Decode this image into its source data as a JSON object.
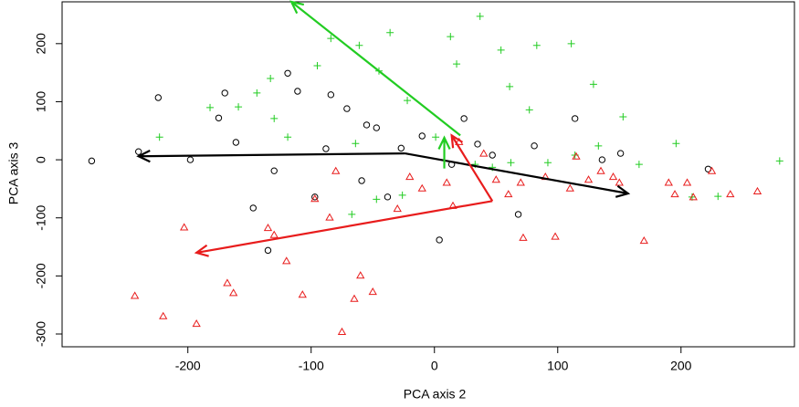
{
  "chart_data": {
    "type": "scatter",
    "x_label": "PCA axis 2",
    "y_label": "PCA axis 3",
    "xlim": [
      -302,
      292
    ],
    "ylim": [
      -322,
      272
    ],
    "xticks": [
      -200,
      -100,
      0,
      100,
      200
    ],
    "yticks": [
      -300,
      -200,
      -100,
      0,
      100,
      200
    ],
    "series": [
      {
        "color": "#000000",
        "shape": "circle",
        "x": [
          -278,
          -240,
          -224,
          -198,
          -170,
          -175,
          -161,
          -130,
          -135,
          -147,
          -119,
          -111,
          -88,
          -97,
          -84,
          -71,
          -59,
          -55,
          -47,
          -38,
          -27,
          -10,
          4,
          14,
          24,
          35,
          47,
          68,
          81,
          114,
          136,
          151,
          222
        ],
        "y": [
          -2,
          14,
          107,
          0,
          115,
          72,
          30,
          -19,
          -156,
          -83,
          149,
          118,
          19,
          -64,
          112,
          88,
          -36,
          60,
          55,
          -64,
          20,
          41,
          -138,
          -8,
          71,
          27,
          8,
          -94,
          24,
          71,
          0,
          11,
          -16
        ]
      },
      {
        "color": "#22cc22",
        "shape": "plus",
        "x": [
          -223,
          -182,
          -159,
          -133,
          -144,
          -130,
          -119,
          -95,
          -84,
          -61,
          -36,
          -45,
          -64,
          -67,
          -47,
          -26,
          -22,
          1,
          13,
          18,
          37,
          54,
          61,
          77,
          83,
          111,
          129,
          133,
          153,
          196,
          166,
          209,
          230,
          280,
          33,
          47,
          62,
          92,
          114
        ],
        "y": [
          39,
          90,
          91,
          140,
          115,
          71,
          39,
          162,
          209,
          197,
          219,
          153,
          28,
          -94,
          -68,
          -61,
          102,
          39,
          212,
          165,
          247,
          189,
          126,
          86,
          197,
          200,
          130,
          24,
          74,
          28,
          -8,
          -64,
          -63,
          -2,
          -8,
          -13,
          -5,
          -5,
          8
        ]
      },
      {
        "color": "#e81c1c",
        "shape": "triangle",
        "x": [
          -243,
          -220,
          -203,
          -193,
          -168,
          -163,
          -135,
          -130,
          -120,
          -107,
          -97,
          -85,
          -80,
          -75,
          -65,
          -60,
          -50,
          -30,
          -20,
          -10,
          10,
          15,
          20,
          40,
          50,
          60,
          70,
          72,
          90,
          98,
          110,
          115,
          125,
          135,
          145,
          150,
          170,
          190,
          195,
          205,
          210,
          225,
          240,
          262
        ],
        "y": [
          -235,
          -270,
          -117,
          -283,
          -213,
          -230,
          -118,
          -130,
          -175,
          -233,
          -68,
          -100,
          -20,
          -297,
          -240,
          -200,
          -228,
          -85,
          -30,
          -50,
          -40,
          -80,
          30,
          10,
          -35,
          -60,
          -40,
          -135,
          -30,
          -133,
          -50,
          5,
          -35,
          -20,
          -30,
          -40,
          -140,
          -40,
          -60,
          -40,
          -65,
          -20,
          -60,
          -55
        ]
      }
    ],
    "arrows": [
      {
        "color": "#000000",
        "from": [
          -24,
          11
        ],
        "to": [
          -240,
          6
        ]
      },
      {
        "color": "#000000",
        "from": [
          -24,
          11
        ],
        "to": [
          157,
          -58
        ]
      },
      {
        "color": "#e81c1c",
        "from": [
          47,
          -71
        ],
        "to": [
          -193,
          -160
        ]
      },
      {
        "color": "#e81c1c",
        "from": [
          47,
          -71
        ],
        "to": [
          14,
          42
        ]
      },
      {
        "color": "#22cc22",
        "from": [
          21,
          42
        ],
        "to": [
          -116,
          272
        ]
      },
      {
        "color": "#22cc22",
        "from": [
          8,
          -15
        ],
        "to": [
          8,
          38
        ]
      }
    ]
  }
}
